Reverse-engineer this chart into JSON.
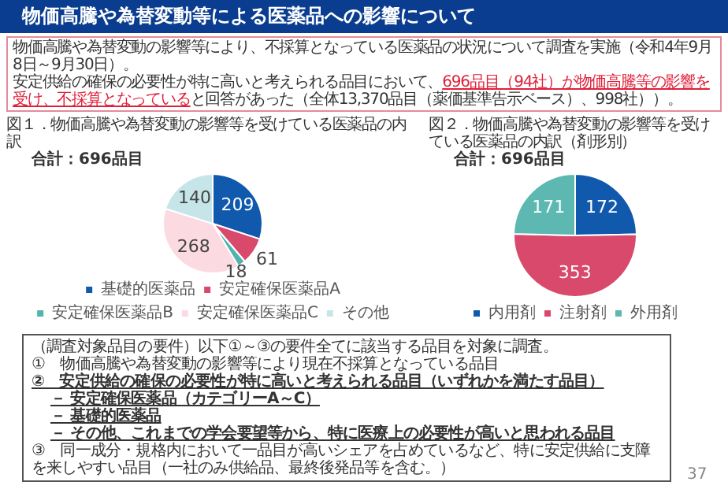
{
  "chart_data": [
    {
      "type": "pie",
      "title": "図１．物価高騰や為替変動の影響等を受けている医薬品の内訳",
      "subtitle": "合計：696品目",
      "categories": [
        "基礎的医薬品",
        "安定確保医薬品A",
        "安定確保医薬品B",
        "安定確保医薬品C",
        "その他"
      ],
      "values": [
        209,
        61,
        18,
        268,
        140
      ],
      "colors": [
        "#1159ad",
        "#d8496c",
        "#4fb5ad",
        "#fbdbe1",
        "#c6e5e8"
      ],
      "data_labels": true,
      "legend": "bottom",
      "annotations": [
        "物価高騰や為替変動等による医薬品への影響について",
        "物価高騰や為替変動の影響等により、不採算となっている医薬品の状況について調査を実施（令和4年9月8日～9月30日）。",
        "安定供給の確保の必要性が特に高いと考えられる品目において、",
        "696品目（94社）が物価高騰等の影響を受け、不採算となっている",
        "と回答があった（全体13,370品目（薬価基準告示ベース）、998社））。",
        "（調査対象品目の要件）以下①～③の要件全てに該当する品目を対象に調査。",
        "①　物価高騰や為替変動の影響等により現在不採算となっている品目",
        "②　安定供給の確保の必要性が特に高いと考えられる品目（いずれかを満たす品目）",
        "－ 安定確保医薬品（カテゴリーA～C）",
        "－ 基礎的医薬品",
        "－ その他、これまでの学会要望等から、特に医療上の必要性が高いと思われる品目",
        "③　同一成分・規格内において一品目が高いシェアを占めているなど、特に安定供給に支障を来しやすい品目（一社のみ供給品、最終後発品等を含む。）",
        "37"
      ]
    },
    {
      "type": "pie",
      "title": "図２．物価高騰や為替変動の影響等を受けている医薬品の内訳（剤形別）",
      "subtitle": "合計：696品目",
      "categories": [
        "内用剤",
        "注射剤",
        "外用剤"
      ],
      "values": [
        172,
        353,
        171
      ],
      "colors": [
        "#1159ad",
        "#d8496c",
        "#5cb8b0"
      ],
      "data_labels": true,
      "legend": "bottom"
    }
  ]
}
